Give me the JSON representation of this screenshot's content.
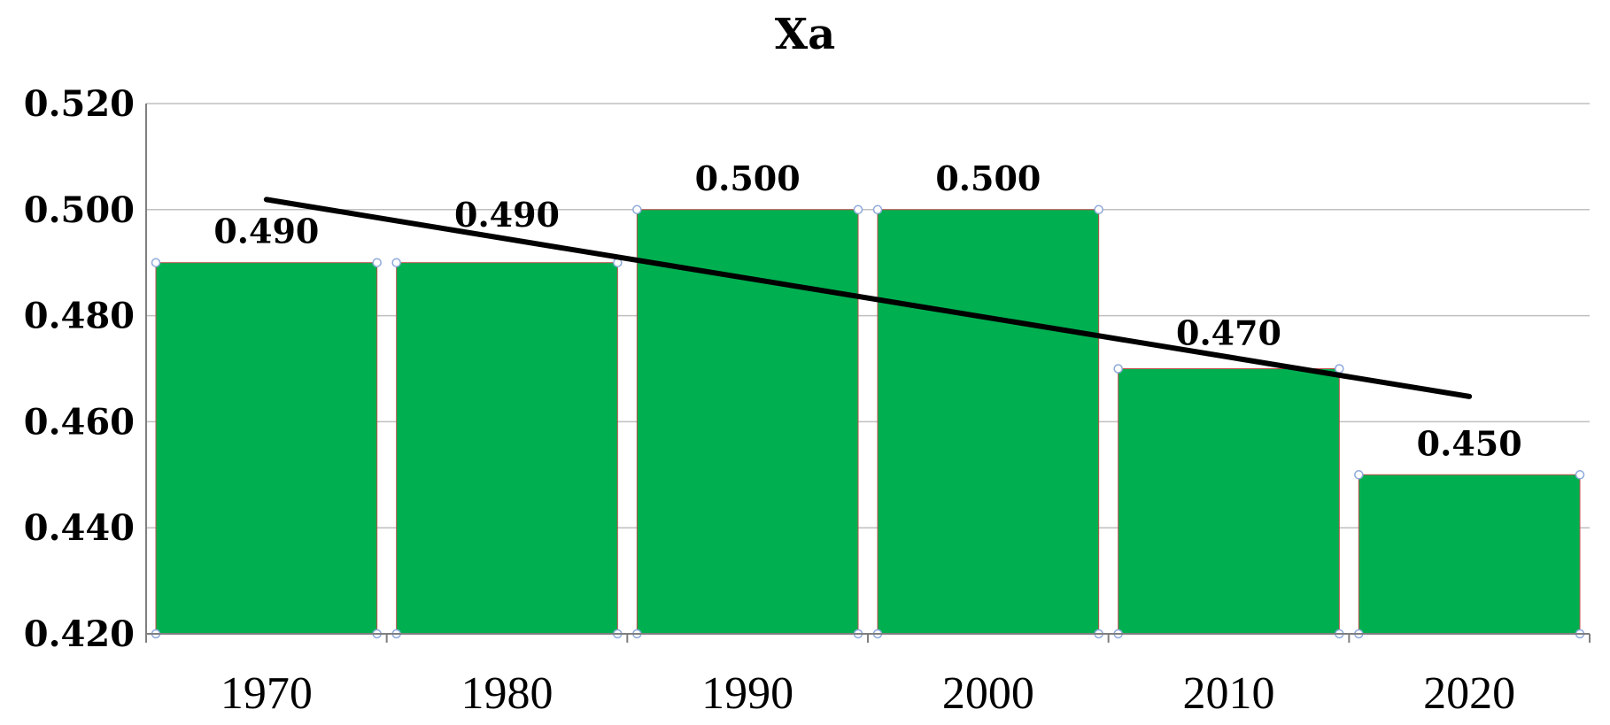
{
  "chart_data": {
    "type": "bar",
    "title": "Xa",
    "categories": [
      "1970",
      "1980",
      "1990",
      "2000",
      "2010",
      "2020"
    ],
    "values": [
      0.49,
      0.49,
      0.5,
      0.5,
      0.47,
      0.45
    ],
    "data_labels": [
      "0.490",
      "0.490",
      "0.500",
      "0.500",
      "0.470",
      "0.450"
    ],
    "y_ticks": [
      "0.420",
      "0.440",
      "0.460",
      "0.480",
      "0.500",
      "0.520"
    ],
    "ylim": [
      0.42,
      0.52
    ],
    "xlabel": "",
    "ylabel": "",
    "grid": true,
    "legend": "none",
    "bar_color": "#00b050",
    "trendline": {
      "type": "linear",
      "color": "#000000"
    }
  }
}
